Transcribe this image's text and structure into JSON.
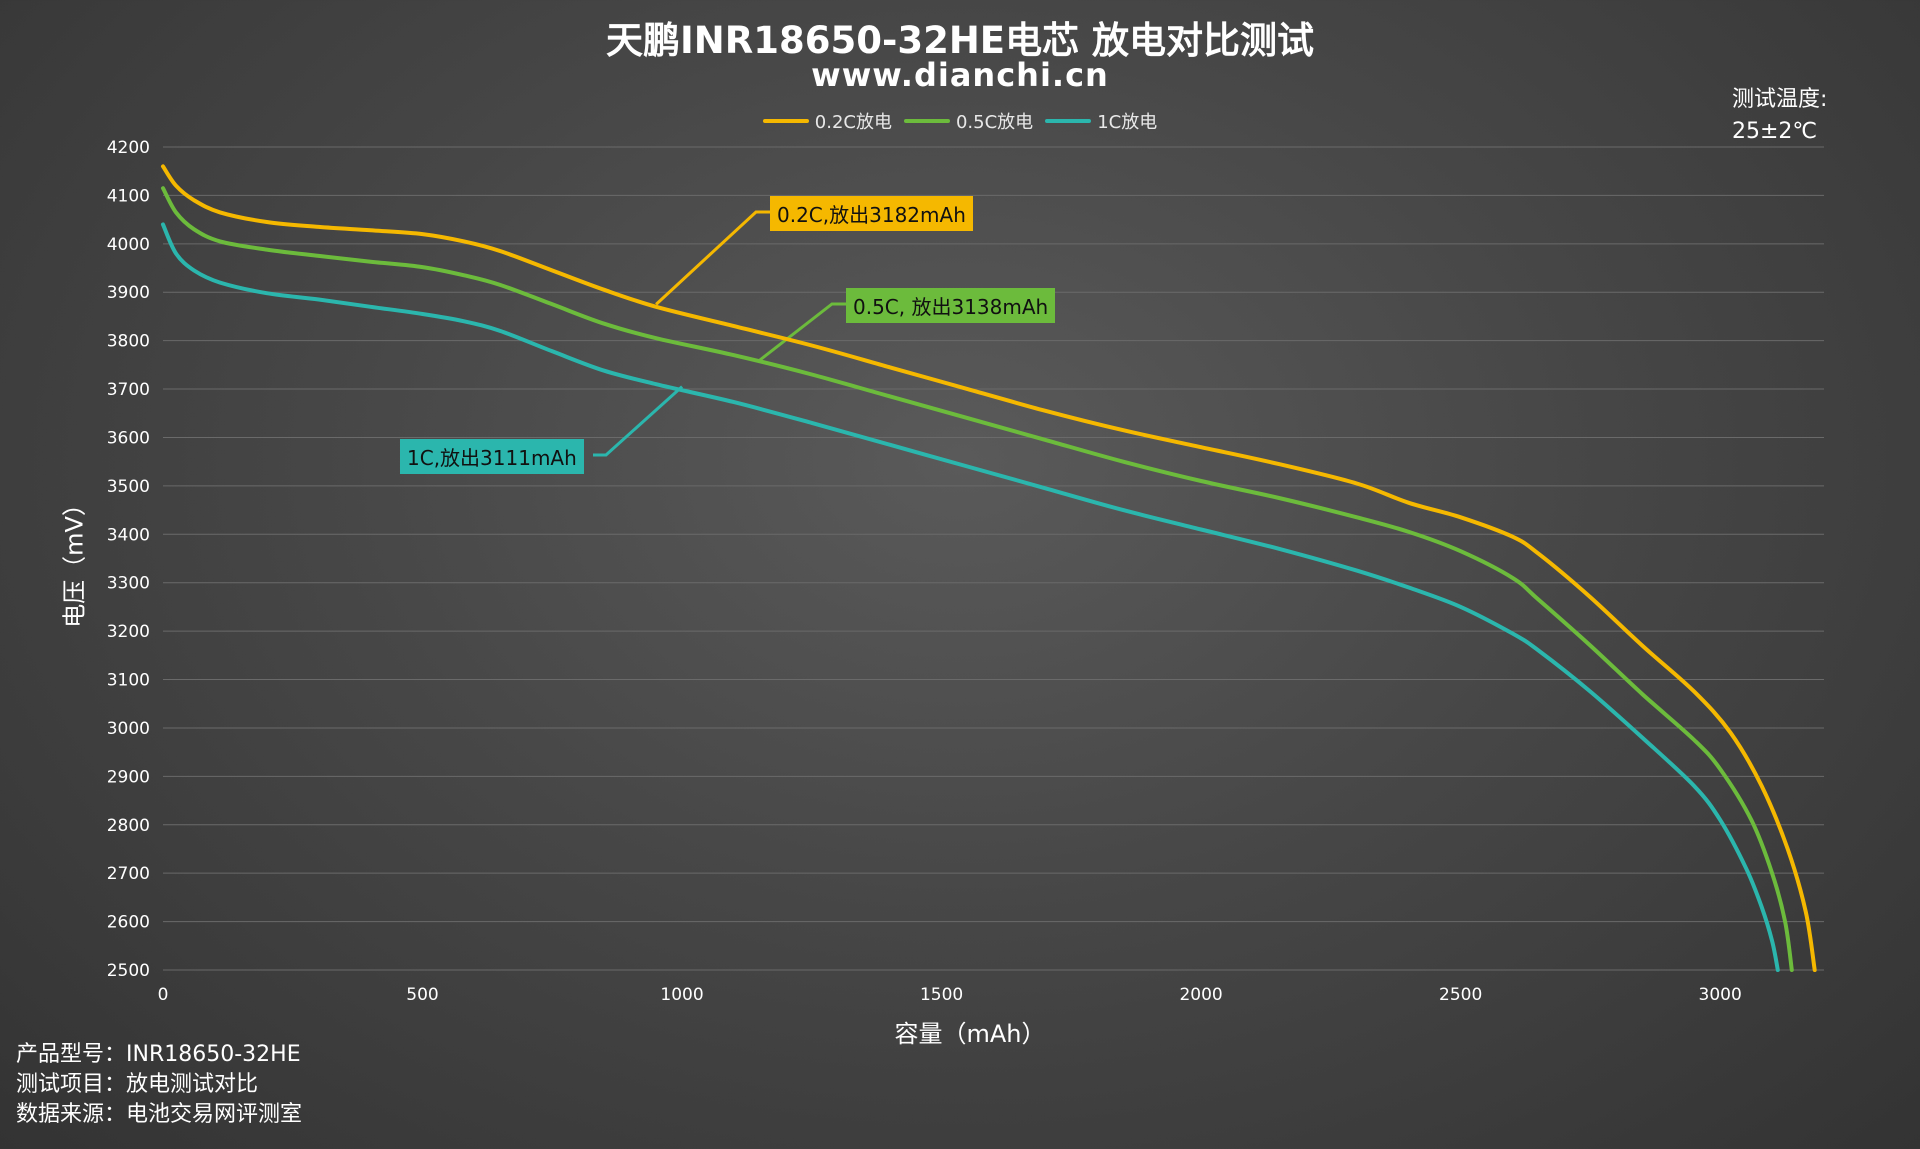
{
  "title": "天鹏INR18650-32HE电芯 放电对比测试",
  "subtitle": "www.dianchi.cn",
  "temperature": {
    "label": "测试温度:",
    "value": "25±2℃"
  },
  "info": {
    "product": "产品型号：INR18650-32HE",
    "test_item": "测试项目：放电测试对比",
    "source": "数据来源：电池交易网评测室"
  },
  "annotations": {
    "a02": "0.2C,放出3182mAh",
    "a05": "0.5C, 放出3138mAh",
    "a1": "1C,放出3111mAh"
  },
  "colors": {
    "c02": "#f5b800",
    "c05": "#6cbb3c",
    "c1": "#2bb6ad",
    "grid": "#6a6a6a"
  },
  "chart_data": {
    "type": "line",
    "title": "天鹏INR18650-32HE电芯 放电对比测试",
    "xlabel": "容量（mAh）",
    "ylabel": "电压（mV）",
    "xlim": [
      0,
      3200
    ],
    "ylim": [
      2500,
      4200
    ],
    "xticks": [
      0,
      500,
      1000,
      1500,
      2000,
      2500,
      3000
    ],
    "yticks": [
      2500,
      2600,
      2700,
      2800,
      2900,
      3000,
      3100,
      3200,
      3300,
      3400,
      3500,
      3600,
      3700,
      3800,
      3900,
      4000,
      4100,
      4200
    ],
    "grid": true,
    "legend_position": "top-center",
    "series": [
      {
        "name": "0.2C放电",
        "color": "#f5b800",
        "x": [
          0,
          25,
          60,
          110,
          200,
          300,
          400,
          500,
          580,
          650,
          750,
          850,
          950,
          1100,
          1250,
          1400,
          1550,
          1700,
          1850,
          2000,
          2150,
          2300,
          2400,
          2500,
          2600,
          2650,
          2750,
          2850,
          2950,
          3020,
          3080,
          3130,
          3165,
          3182
        ],
        "y": [
          4160,
          4120,
          4090,
          4065,
          4045,
          4035,
          4028,
          4020,
          4005,
          3985,
          3945,
          3905,
          3870,
          3830,
          3790,
          3745,
          3700,
          3655,
          3615,
          3580,
          3545,
          3505,
          3465,
          3435,
          3395,
          3360,
          3270,
          3170,
          3075,
          2990,
          2880,
          2750,
          2620,
          2500
        ]
      },
      {
        "name": "0.5C放电",
        "color": "#6cbb3c",
        "x": [
          0,
          25,
          60,
          110,
          200,
          300,
          400,
          500,
          580,
          650,
          750,
          850,
          950,
          1100,
          1250,
          1400,
          1550,
          1700,
          1850,
          2000,
          2150,
          2300,
          2400,
          2500,
          2600,
          2650,
          2750,
          2850,
          2950,
          3000,
          3060,
          3100,
          3125,
          3138
        ],
        "y": [
          4115,
          4065,
          4030,
          4005,
          3988,
          3975,
          3963,
          3952,
          3935,
          3915,
          3875,
          3835,
          3805,
          3770,
          3730,
          3685,
          3640,
          3595,
          3550,
          3510,
          3475,
          3435,
          3405,
          3365,
          3310,
          3265,
          3170,
          3070,
          2975,
          2915,
          2810,
          2700,
          2600,
          2500
        ]
      },
      {
        "name": "1C放电",
        "color": "#2bb6ad",
        "x": [
          0,
          25,
          60,
          110,
          200,
          300,
          400,
          500,
          580,
          650,
          750,
          850,
          950,
          1100,
          1250,
          1400,
          1550,
          1700,
          1850,
          2000,
          2150,
          2300,
          2400,
          2500,
          2600,
          2650,
          2750,
          2850,
          2950,
          3000,
          3050,
          3080,
          3100,
          3111
        ],
        "y": [
          4040,
          3980,
          3945,
          3920,
          3898,
          3885,
          3870,
          3855,
          3840,
          3820,
          3778,
          3738,
          3710,
          3673,
          3630,
          3585,
          3540,
          3495,
          3450,
          3410,
          3370,
          3325,
          3290,
          3250,
          3195,
          3160,
          3075,
          2980,
          2880,
          2810,
          2710,
          2630,
          2560,
          2500
        ]
      }
    ]
  }
}
